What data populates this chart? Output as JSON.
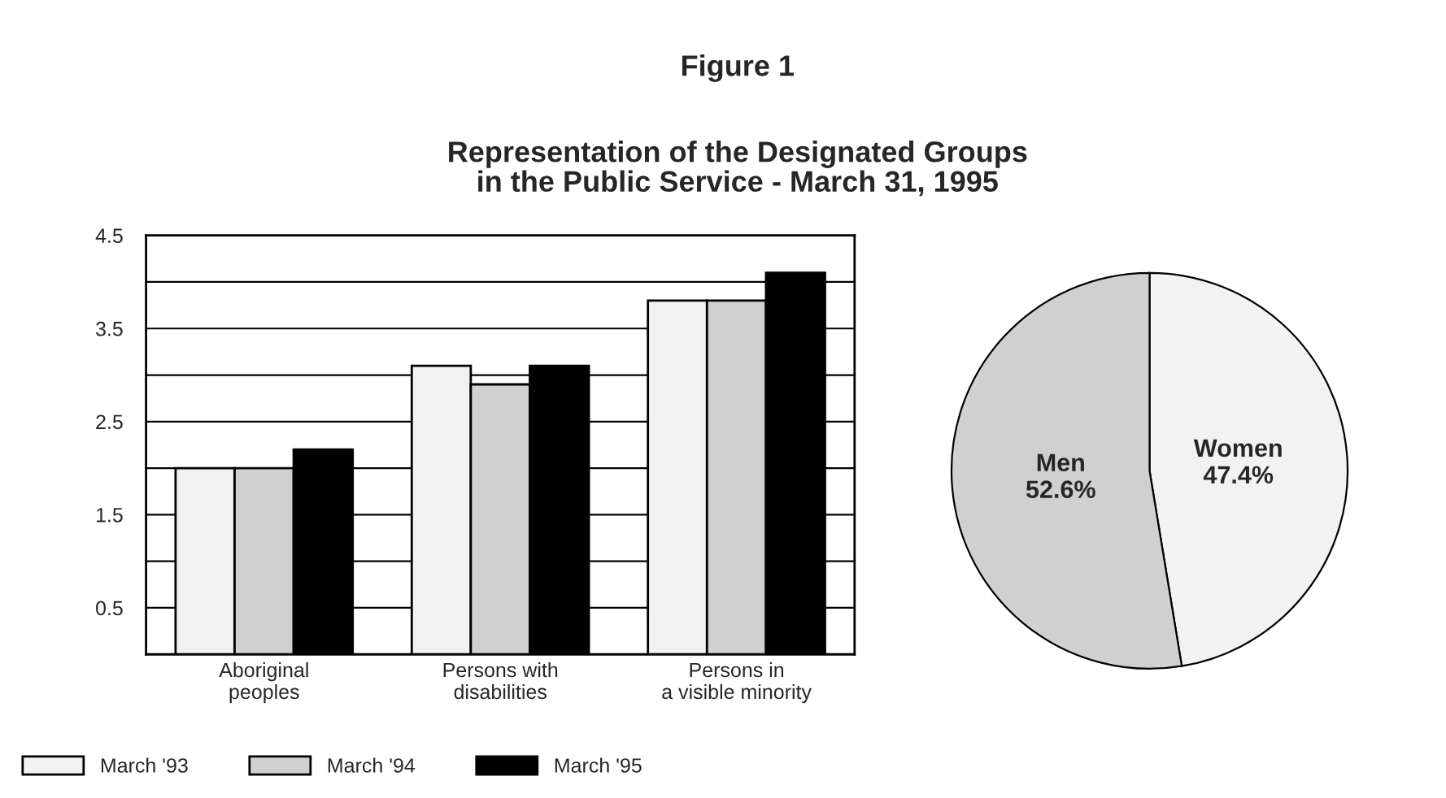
{
  "chart_data": [
    {
      "type": "bar",
      "title": "Figure 1",
      "subtitle": "Representation of the Designated Groups\nin the Public Service - March 31, 1995",
      "categories": [
        "Aboriginal\npeoples",
        "Persons with\ndisabilities",
        "Persons in\na visible minority"
      ],
      "series": [
        {
          "name": "March '93",
          "color": "#f2f2f2",
          "values": [
            2.0,
            3.1,
            3.8
          ]
        },
        {
          "name": "March '94",
          "color": "#d0d0d0",
          "values": [
            2.0,
            2.9,
            3.8
          ]
        },
        {
          "name": "March '95",
          "color": "#000000",
          "values": [
            2.2,
            3.1,
            4.1
          ]
        }
      ],
      "ylim": [
        0,
        4.5
      ],
      "yticks": [
        {
          "value": 0,
          "label": null
        },
        0.5,
        {
          "value": 1,
          "label": null
        },
        1.5,
        {
          "value": 2,
          "label": null
        },
        2.5,
        {
          "value": 3,
          "label": null
        },
        3.5,
        {
          "value": 4,
          "label": null
        },
        4.5
      ],
      "grid": "y",
      "legend": "bottom"
    },
    {
      "type": "pie",
      "categories": [
        "Women",
        "Men"
      ],
      "values": [
        47.4,
        52.6
      ],
      "colors": [
        "#f2f2f2",
        "#d0d0d0"
      ],
      "value_labels": [
        "47.4%",
        "52.6%"
      ]
    }
  ]
}
